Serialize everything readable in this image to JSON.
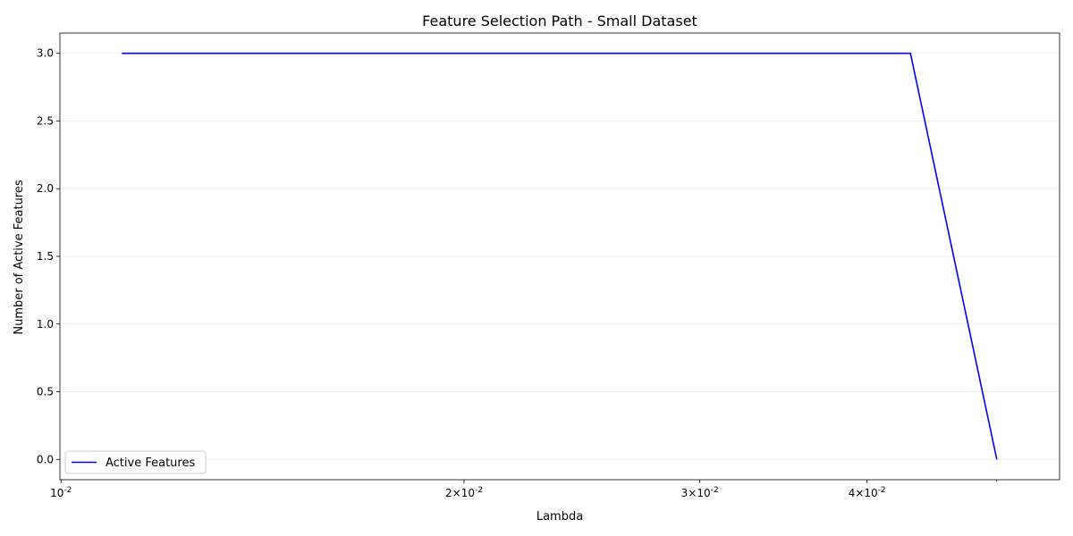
{
  "chart_data": {
    "type": "line",
    "title": "Feature Selection Path - Small Dataset",
    "xlabel": "Lambda",
    "ylabel": "Number of Active Features",
    "xscale": "log",
    "xlim": [
      0.00998,
      0.0557
    ],
    "ylim": [
      -0.15,
      3.15
    ],
    "x_ticks": [
      {
        "value": 0.01,
        "label": "10^{-2}"
      },
      {
        "value": 0.02,
        "label": "2×10^{-2}"
      },
      {
        "value": 0.03,
        "label": "3×10^{-2}"
      },
      {
        "value": 0.04,
        "label": "4×10^{-2}"
      }
    ],
    "x_minor_ticks": [
      0.05
    ],
    "y_ticks": [
      "0.0",
      "0.5",
      "1.0",
      "1.5",
      "2.0",
      "2.5",
      "3.0"
    ],
    "grid": {
      "y": true,
      "x": false
    },
    "legend_placement": "lower-left",
    "series": [
      {
        "name": "Active Features",
        "color": "#0000ff",
        "x": [
          0.0111,
          0.0431,
          0.05
        ],
        "y": [
          3,
          3,
          0
        ]
      }
    ]
  }
}
